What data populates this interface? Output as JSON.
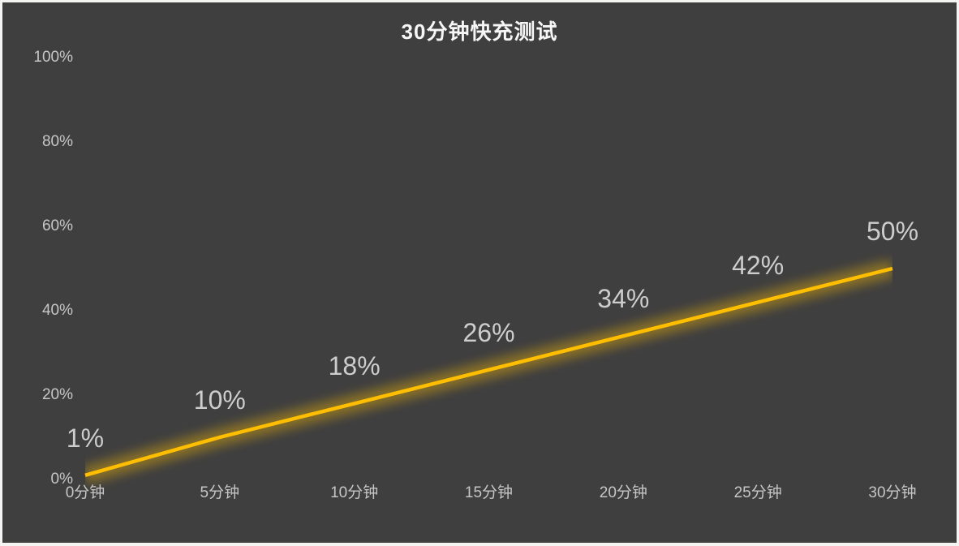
{
  "frame": {
    "background_color": "#3f3f3f",
    "border_color": "#f4f4f2"
  },
  "chart_data": {
    "type": "line",
    "title": "30分钟快充测试",
    "categories": [
      "0分钟",
      "5分钟",
      "10分钟",
      "15分钟",
      "20分钟",
      "25分钟",
      "30分钟"
    ],
    "values": [
      1,
      10,
      18,
      26,
      34,
      42,
      50
    ],
    "data_labels": [
      "1%",
      "10%",
      "18%",
      "26%",
      "34%",
      "42%",
      "50%"
    ],
    "xlabel": "",
    "ylabel": "",
    "ylim": [
      0,
      100
    ],
    "y_ticks": [
      {
        "value": 100,
        "label": "100%"
      },
      {
        "value": 80,
        "label": "80%"
      },
      {
        "value": 60,
        "label": "60%"
      },
      {
        "value": 40,
        "label": "40%"
      },
      {
        "value": 20,
        "label": "20%"
      },
      {
        "value": 0,
        "label": "0%"
      }
    ],
    "grid": false,
    "legend": "none",
    "line_color": "#ffbf00",
    "line_glow": true,
    "title_color": "#f6f6f6",
    "tick_label_color": "#c6c6c6",
    "data_label_color": "#cdcdcd"
  }
}
